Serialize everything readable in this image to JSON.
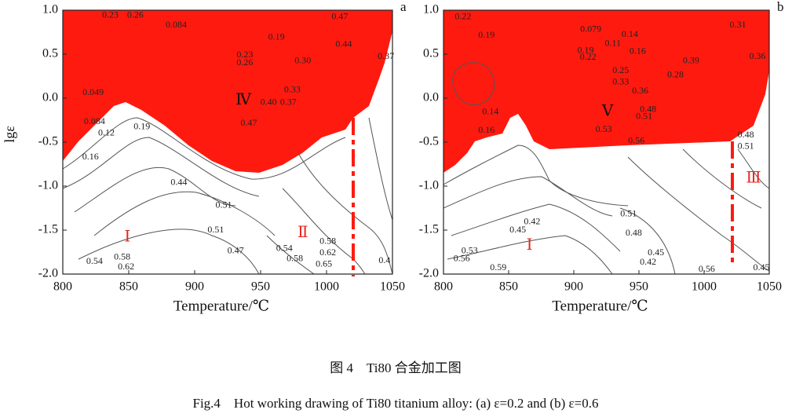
{
  "chart_data": [
    {
      "type": "contour",
      "panel": "a",
      "xlabel": "Temperature/℃",
      "ylabel": "lgε",
      "xlim": [
        800,
        1050
      ],
      "ylim": [
        -2,
        1
      ],
      "xticks": [
        800,
        850,
        900,
        950,
        1000,
        1050
      ],
      "yticks": [
        {
          "value": 1,
          "label": "1.0"
        },
        0.5,
        {
          "value": 0,
          "label": "0.0"
        },
        -0.5,
        {
          "value": -1,
          "label": "-1.0"
        },
        -1.5,
        {
          "value": -2,
          "label": "-2.0"
        }
      ],
      "regions": [
        {
          "label": "Ⅳ",
          "x": 937,
          "y": -0.03,
          "color": "#111111"
        },
        {
          "label": "Ⅰ",
          "x": 849,
          "y": -1.59,
          "color": "#e8261e"
        },
        {
          "label": "Ⅱ",
          "x": 982,
          "y": -1.54,
          "color": "#e8261e"
        }
      ],
      "contour_labels": [
        {
          "label": "0.23",
          "x": 836,
          "y": 0.94
        },
        {
          "label": "0.26",
          "x": 855,
          "y": 0.94
        },
        {
          "label": "0.084",
          "x": 886,
          "y": 0.83
        },
        {
          "label": "0.19",
          "x": 962,
          "y": 0.69
        },
        {
          "label": "0.47",
          "x": 1010,
          "y": 0.92
        },
        {
          "label": "0.44",
          "x": 1013,
          "y": 0.61
        },
        {
          "label": "0.23",
          "x": 938,
          "y": 0.49
        },
        {
          "label": "0.26",
          "x": 938,
          "y": 0.4
        },
        {
          "label": "0.30",
          "x": 982,
          "y": 0.42
        },
        {
          "label": "0.37",
          "x": 1045,
          "y": 0.47
        },
        {
          "label": "0.049",
          "x": 823,
          "y": 0.06
        },
        {
          "label": "0.33",
          "x": 974,
          "y": 0.09
        },
        {
          "label": "0.40",
          "x": 956,
          "y": -0.05
        },
        {
          "label": "0.37",
          "x": 971,
          "y": -0.05
        },
        {
          "label": "0.47",
          "x": 941,
          "y": -0.29
        },
        {
          "label": "0.084",
          "x": 824,
          "y": -0.27
        },
        {
          "label": "0.12",
          "x": 833,
          "y": -0.4
        },
        {
          "label": "0.19",
          "x": 860,
          "y": -0.33
        },
        {
          "label": "0.16",
          "x": 821,
          "y": -0.67
        },
        {
          "label": "0.44",
          "x": 888,
          "y": -0.96
        },
        {
          "label": "0.51",
          "x": 922,
          "y": -1.22
        },
        {
          "label": "0.51",
          "x": 916,
          "y": -1.5
        },
        {
          "label": "0.47",
          "x": 931,
          "y": -1.74
        },
        {
          "label": "0.54",
          "x": 968,
          "y": -1.71
        },
        {
          "label": "0.58",
          "x": 976,
          "y": -1.83
        },
        {
          "label": "0.58",
          "x": 1001,
          "y": -1.63
        },
        {
          "label": "0.62",
          "x": 1001,
          "y": -1.76
        },
        {
          "label": "0.65",
          "x": 998,
          "y": -1.89
        },
        {
          "label": "0.4",
          "x": 1044,
          "y": -1.85
        },
        {
          "label": "0.54",
          "x": 824,
          "y": -1.86
        },
        {
          "label": "0.58",
          "x": 845,
          "y": -1.81
        },
        {
          "label": "0.62",
          "x": 848,
          "y": -1.92
        }
      ]
    },
    {
      "type": "contour",
      "panel": "b",
      "xlabel": "Temperature/℃",
      "xlim": [
        800,
        1050
      ],
      "ylim": [
        -2,
        1
      ],
      "xticks": [
        800,
        850,
        900,
        950,
        1000,
        1050
      ],
      "yticks": [
        {
          "value": 1,
          "label": "1.0"
        },
        0.5,
        {
          "value": 0,
          "label": "0.0"
        },
        -0.5,
        {
          "value": -1,
          "label": "-1.0"
        },
        -1.5,
        {
          "value": -2,
          "label": "-2.0"
        }
      ],
      "regions": [
        {
          "label": "Ⅴ",
          "x": 926,
          "y": -0.16,
          "color": "#111111"
        },
        {
          "label": "Ⅰ",
          "x": 866,
          "y": -1.68,
          "color": "#e8261e"
        },
        {
          "label": "Ⅲ",
          "x": 1038,
          "y": -0.92,
          "color": "#e8261e"
        }
      ],
      "contour_labels": [
        {
          "label": "0.22",
          "x": 815,
          "y": 0.92
        },
        {
          "label": "0.19",
          "x": 833,
          "y": 0.71
        },
        {
          "label": "0.079",
          "x": 913,
          "y": 0.78
        },
        {
          "label": "0.14",
          "x": 943,
          "y": 0.72
        },
        {
          "label": "0.11",
          "x": 930,
          "y": 0.62
        },
        {
          "label": "0.16",
          "x": 949,
          "y": 0.53
        },
        {
          "label": "0.19",
          "x": 909,
          "y": 0.54
        },
        {
          "label": "0.22",
          "x": 911,
          "y": 0.46
        },
        {
          "label": "0.39",
          "x": 990,
          "y": 0.42
        },
        {
          "label": "0.31",
          "x": 1026,
          "y": 0.83
        },
        {
          "label": "0.36",
          "x": 1041,
          "y": 0.47
        },
        {
          "label": "0.25",
          "x": 936,
          "y": 0.31
        },
        {
          "label": "0.28",
          "x": 978,
          "y": 0.26
        },
        {
          "label": "0.33",
          "x": 936,
          "y": 0.18
        },
        {
          "label": "0.36",
          "x": 951,
          "y": 0.08
        },
        {
          "label": "0.14",
          "x": 836,
          "y": -0.16
        },
        {
          "label": "0.16",
          "x": 833,
          "y": -0.37
        },
        {
          "label": "0.48",
          "x": 957,
          "y": -0.13
        },
        {
          "label": "0.51",
          "x": 954,
          "y": -0.21
        },
        {
          "label": "0.53",
          "x": 923,
          "y": -0.36
        },
        {
          "label": "0.56",
          "x": 948,
          "y": -0.49
        },
        {
          "label": "0.48",
          "x": 1032,
          "y": -0.42
        },
        {
          "label": "0.51",
          "x": 1032,
          "y": -0.55
        },
        {
          "label": "0.51",
          "x": 942,
          "y": -1.32
        },
        {
          "label": "0.48",
          "x": 946,
          "y": -1.54
        },
        {
          "label": "0.45",
          "x": 963,
          "y": -1.76
        },
        {
          "label": "0.42",
          "x": 957,
          "y": -1.87
        },
        {
          "label": "0.42",
          "x": 868,
          "y": -1.41
        },
        {
          "label": "0.45",
          "x": 857,
          "y": -1.5
        },
        {
          "label": "0.53",
          "x": 820,
          "y": -1.74
        },
        {
          "label": "0.56",
          "x": 814,
          "y": -1.83
        },
        {
          "label": "0.59",
          "x": 842,
          "y": -1.93
        },
        {
          "label": "0.56",
          "x": 1002,
          "y": -1.95
        },
        {
          "label": "0.45",
          "x": 1044,
          "y": -1.93
        }
      ]
    }
  ],
  "caption": {
    "zh": "图 4　Ti80 合金加工图",
    "en": "Fig.4　Hot working drawing of Ti80 titanium alloy: (a) ε=0.2 and (b) ε=0.6"
  }
}
